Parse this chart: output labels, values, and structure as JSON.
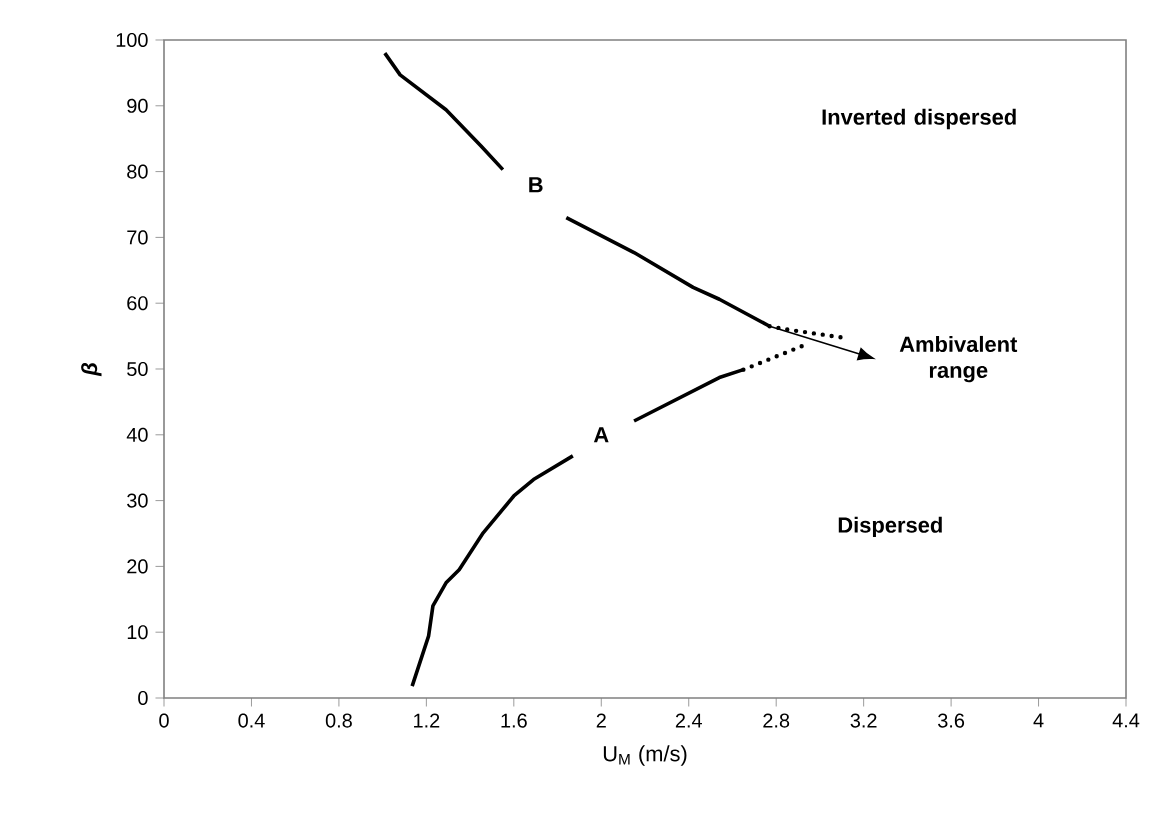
{
  "chart_data": {
    "type": "line",
    "xlabel": "U$_{M}$ (m/s)",
    "ylabel": "β",
    "xlim": [
      0,
      4.4
    ],
    "ylim": [
      0,
      100
    ],
    "xticks": [
      0,
      0.4,
      0.8,
      1.2,
      1.6,
      2,
      2.4,
      2.8,
      3.2,
      3.6,
      4,
      4.4
    ],
    "yticks": [
      0,
      10,
      20,
      30,
      40,
      50,
      60,
      70,
      80,
      90,
      100
    ],
    "grid": false,
    "marker": "none",
    "series": [
      {
        "color": "#000000",
        "line_style": "solid",
        "x": [
          1.01,
          1.08,
          1.29,
          1.45,
          1.55,
          1.7,
          1.84,
          2.15,
          2.42,
          2.54,
          2.77
        ],
        "values": [
          98,
          94.7,
          89.4,
          83.9,
          80.3,
          null,
          73,
          67.7,
          62.4,
          60.6,
          56.5
        ]
      },
      {
        "color": "#000000",
        "line_style": "dotted",
        "x": [
          2.77,
          2.85,
          3.12
        ],
        "values": [
          56.5,
          56,
          54.7
        ]
      },
      {
        "color": "#000000",
        "line_style": "solid",
        "x": [
          1.135,
          1.21,
          1.23,
          1.29,
          1.35,
          1.46,
          1.6,
          1.69,
          1.87,
          2,
          2.15,
          2.54,
          2.65
        ],
        "values": [
          1.8,
          9.4,
          14,
          17.5,
          19.5,
          25.1,
          30.7,
          33.2,
          36.8,
          null,
          42.1,
          48.7,
          49.9
        ]
      },
      {
        "color": "#000000",
        "line_style": "dotted",
        "x": [
          2.65,
          2.92
        ],
        "values": [
          49.9,
          53.5
        ]
      }
    ],
    "annotations": [
      {
        "text": "B",
        "x": 1.7,
        "y": 78
      },
      {
        "text": "A",
        "x": 2,
        "y": 40
      },
      "Inverted dispersed",
      "Ambivalent range",
      "Dispersed"
    ]
  }
}
